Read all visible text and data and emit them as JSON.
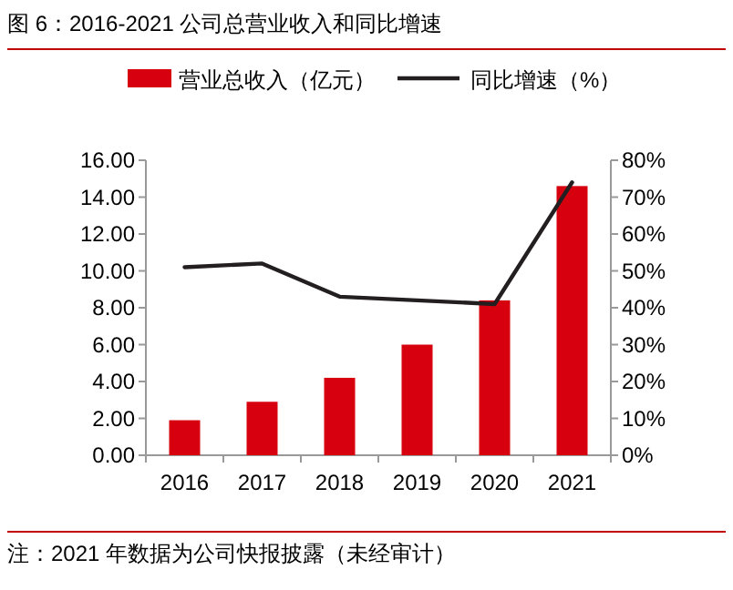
{
  "chart_data": {
    "type": "bar",
    "title": "图 6：2016-2021 公司总营业收入和同比增速",
    "categories": [
      "2016",
      "2017",
      "2018",
      "2019",
      "2020",
      "2021"
    ],
    "series": [
      {
        "name": "营业总收入（亿元）",
        "color": "#d7000f",
        "values": [
          1.9,
          2.9,
          4.2,
          6.0,
          8.4,
          14.6
        ]
      },
      {
        "name": "同比增速（%）",
        "type": "line",
        "axis": "y2",
        "color": "#231f20",
        "values": [
          51,
          52,
          43,
          42,
          41,
          74
        ]
      }
    ],
    "ylim": [
      0,
      16
    ],
    "yticks": [
      {
        "value": 0,
        "label": "0.00"
      },
      {
        "value": 2,
        "label": "2.00"
      },
      {
        "value": 4,
        "label": "4.00"
      },
      {
        "value": 6,
        "label": "6.00"
      },
      {
        "value": 8,
        "label": "8.00"
      },
      {
        "value": 10,
        "label": "10.00"
      },
      {
        "value": 12,
        "label": "12.00"
      },
      {
        "value": 14,
        "label": "14.00"
      },
      {
        "value": 16,
        "label": "16.00"
      }
    ],
    "y2lim": [
      0,
      80
    ],
    "y2ticks": [
      {
        "value": 0,
        "label": "0%"
      },
      {
        "value": 10,
        "label": "10%"
      },
      {
        "value": 20,
        "label": "20%"
      },
      {
        "value": 30,
        "label": "30%"
      },
      {
        "value": 40,
        "label": "40%"
      },
      {
        "value": 50,
        "label": "50%"
      },
      {
        "value": 60,
        "label": "60%"
      },
      {
        "value": 70,
        "label": "70%"
      },
      {
        "value": 80,
        "label": "80%"
      }
    ],
    "legend": "top",
    "grid": false,
    "marker": "none",
    "annotations": [
      "注：2021 年数据为公司快报披露（未经审计）"
    ]
  }
}
